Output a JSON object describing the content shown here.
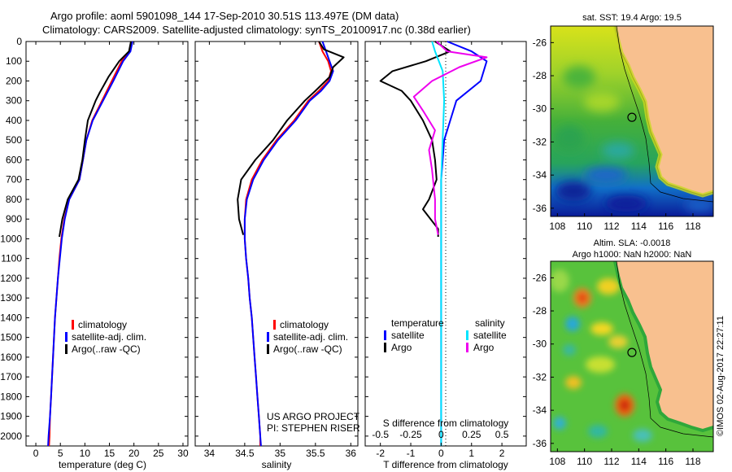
{
  "titles": {
    "line1": "Argo profile: aoml 5901098_144 17-Sep-2010 30.51S 113.497E (DM data)",
    "line2": "Climatology: CARS2009. Satellite-adjusted climatology: synTS_20100917.nc (0.38d earlier)"
  },
  "chart_data": [
    {
      "type": "line",
      "name": "temperature-profile",
      "xlabel": "temperature (deg C)",
      "ylabel": "",
      "xlim": [
        -2,
        31
      ],
      "ylim": [
        2050,
        0
      ],
      "xticks": [
        0,
        5,
        10,
        15,
        20,
        25,
        30
      ],
      "yticks": [
        0,
        100,
        200,
        300,
        400,
        500,
        600,
        700,
        800,
        900,
        1000,
        1100,
        1200,
        1300,
        1400,
        1500,
        1600,
        1700,
        1800,
        1900,
        2000
      ],
      "legend": [
        "climatology",
        "satellite-adj. clim.",
        "Argo(..raw -QC)"
      ],
      "series": [
        {
          "name": "climatology",
          "color": "#ff0000",
          "points": [
            [
              19.5,
              0
            ],
            [
              19.2,
              50
            ],
            [
              17.5,
              100
            ],
            [
              15.5,
              200
            ],
            [
              13.5,
              300
            ],
            [
              11.5,
              400
            ],
            [
              10.3,
              500
            ],
            [
              9.6,
              600
            ],
            [
              8.9,
              700
            ],
            [
              6.8,
              800
            ],
            [
              5.8,
              900
            ],
            [
              5.2,
              1000
            ],
            [
              4.8,
              1100
            ],
            [
              4.5,
              1200
            ],
            [
              4.2,
              1300
            ],
            [
              3.9,
              1400
            ],
            [
              3.7,
              1500
            ],
            [
              3.5,
              1600
            ],
            [
              3.3,
              1700
            ],
            [
              3.1,
              1800
            ],
            [
              2.9,
              1900
            ],
            [
              2.8,
              2000
            ],
            [
              2.7,
              2050
            ]
          ]
        },
        {
          "name": "satellite-adj. clim.",
          "color": "#0000ff",
          "points": [
            [
              19.7,
              0
            ],
            [
              19.3,
              50
            ],
            [
              17.8,
              100
            ],
            [
              15.8,
              200
            ],
            [
              13.7,
              300
            ],
            [
              11.6,
              400
            ],
            [
              10.3,
              500
            ],
            [
              9.6,
              600
            ],
            [
              8.9,
              700
            ],
            [
              6.8,
              800
            ],
            [
              5.9,
              900
            ],
            [
              5.3,
              1000
            ],
            [
              4.9,
              1100
            ],
            [
              4.5,
              1200
            ],
            [
              4.2,
              1300
            ],
            [
              3.9,
              1400
            ],
            [
              3.7,
              1500
            ],
            [
              3.5,
              1600
            ],
            [
              3.3,
              1700
            ],
            [
              3.1,
              1800
            ],
            [
              2.9,
              1900
            ],
            [
              2.6,
              2000
            ],
            [
              2.5,
              2050
            ]
          ]
        },
        {
          "name": "Argo(..raw -QC)",
          "color": "#000000",
          "points": [
            [
              19.4,
              0
            ],
            [
              19.0,
              50
            ],
            [
              17.0,
              100
            ],
            [
              14.8,
              180
            ],
            [
              13.0,
              260
            ],
            [
              12.2,
              300
            ],
            [
              10.6,
              400
            ],
            [
              10.0,
              500
            ],
            [
              9.5,
              600
            ],
            [
              8.7,
              700
            ],
            [
              6.5,
              800
            ],
            [
              5.4,
              900
            ],
            [
              4.8,
              990
            ]
          ]
        }
      ]
    },
    {
      "type": "line",
      "name": "salinity-profile",
      "xlabel": "salinity",
      "ylabel": "",
      "xlim": [
        33.8,
        36.1
      ],
      "ylim": [
        2050,
        0
      ],
      "xticks": [
        34,
        34.5,
        35,
        35.5,
        36
      ],
      "legend": [
        "climatology",
        "satellite-adj. clim.",
        "Argo(..raw -QC)"
      ],
      "annotation": [
        "US ARGO PROJECT",
        "PI: STEPHEN RISER"
      ],
      "series": [
        {
          "name": "climatology",
          "color": "#ff0000",
          "points": [
            [
              35.55,
              0
            ],
            [
              35.6,
              50
            ],
            [
              35.68,
              100
            ],
            [
              35.72,
              150
            ],
            [
              35.68,
              200
            ],
            [
              35.55,
              250
            ],
            [
              35.4,
              300
            ],
            [
              35.2,
              400
            ],
            [
              34.95,
              500
            ],
            [
              34.75,
              600
            ],
            [
              34.6,
              700
            ],
            [
              34.52,
              800
            ],
            [
              34.5,
              900
            ],
            [
              34.5,
              1000
            ],
            [
              34.52,
              1100
            ],
            [
              34.55,
              1200
            ],
            [
              34.57,
              1300
            ],
            [
              34.6,
              1400
            ],
            [
              34.62,
              1500
            ],
            [
              34.64,
              1600
            ],
            [
              34.66,
              1700
            ],
            [
              34.68,
              1800
            ],
            [
              34.7,
              1900
            ],
            [
              34.72,
              2000
            ],
            [
              34.72,
              2050
            ]
          ]
        },
        {
          "name": "satellite-adj. clim.",
          "color": "#0000ff",
          "points": [
            [
              35.6,
              0
            ],
            [
              35.65,
              50
            ],
            [
              35.7,
              100
            ],
            [
              35.75,
              150
            ],
            [
              35.7,
              200
            ],
            [
              35.58,
              250
            ],
            [
              35.42,
              300
            ],
            [
              35.22,
              400
            ],
            [
              34.97,
              500
            ],
            [
              34.77,
              600
            ],
            [
              34.62,
              700
            ],
            [
              34.53,
              800
            ],
            [
              34.5,
              900
            ],
            [
              34.5,
              1000
            ],
            [
              34.52,
              1100
            ],
            [
              34.55,
              1200
            ],
            [
              34.57,
              1300
            ],
            [
              34.6,
              1400
            ],
            [
              34.62,
              1500
            ],
            [
              34.64,
              1600
            ],
            [
              34.66,
              1700
            ],
            [
              34.68,
              1800
            ],
            [
              34.7,
              1900
            ],
            [
              34.72,
              2000
            ],
            [
              34.73,
              2050
            ]
          ]
        },
        {
          "name": "Argo(..raw -QC)",
          "color": "#000000",
          "points": [
            [
              35.55,
              0
            ],
            [
              35.62,
              40
            ],
            [
              35.9,
              80
            ],
            [
              35.75,
              130
            ],
            [
              35.7,
              180
            ],
            [
              35.5,
              250
            ],
            [
              35.35,
              300
            ],
            [
              35.1,
              400
            ],
            [
              34.9,
              500
            ],
            [
              34.65,
              600
            ],
            [
              34.45,
              700
            ],
            [
              34.4,
              800
            ],
            [
              34.42,
              900
            ],
            [
              34.48,
              980
            ]
          ]
        }
      ]
    },
    {
      "type": "line",
      "name": "difference-profile",
      "xlabel": "T difference from climatology",
      "xlabel_top": "S difference from climatology",
      "ylabel": "",
      "xlim": [
        -2.5,
        2.8
      ],
      "ylim": [
        2050,
        0
      ],
      "xticks": [
        -2,
        -1,
        0,
        1,
        2
      ],
      "xticks_s": [
        "-0.5",
        "-0.25",
        "0",
        "0.25",
        "0.5"
      ],
      "legend_headers": [
        "temperature",
        "salinity"
      ],
      "legend": [
        "satellite",
        "Argo",
        "satellite",
        "Argo"
      ],
      "series": [
        {
          "name": "temperature satellite",
          "color": "#0000ff",
          "points": [
            [
              0.2,
              0
            ],
            [
              1.0,
              50
            ],
            [
              1.5,
              100
            ],
            [
              1.3,
              200
            ],
            [
              0.5,
              300
            ],
            [
              0.3,
              400
            ],
            [
              0.1,
              500
            ],
            [
              0.05,
              600
            ],
            [
              0,
              700
            ],
            [
              0,
              800
            ],
            [
              0,
              1000
            ],
            [
              0,
              2050
            ]
          ]
        },
        {
          "name": "temperature Argo",
          "color": "#000000",
          "points": [
            [
              -0.2,
              0
            ],
            [
              0.3,
              50
            ],
            [
              -0.5,
              100
            ],
            [
              -1.6,
              150
            ],
            [
              -2.0,
              200
            ],
            [
              -1.3,
              250
            ],
            [
              -1.0,
              300
            ],
            [
              -0.6,
              400
            ],
            [
              -0.3,
              500
            ],
            [
              -0.2,
              600
            ],
            [
              -0.15,
              700
            ],
            [
              -0.4,
              800
            ],
            [
              -0.6,
              850
            ],
            [
              -0.1,
              950
            ],
            [
              -0.1,
              990
            ]
          ]
        },
        {
          "name": "salinity satellite",
          "color": "#00e5ff",
          "points": [
            [
              -0.3,
              0
            ],
            [
              -0.2,
              50
            ],
            [
              0.05,
              150
            ],
            [
              0.1,
              300
            ],
            [
              0,
              700
            ],
            [
              0,
              2050
            ]
          ]
        },
        {
          "name": "salinity Argo",
          "color": "#ee00ee",
          "points": [
            [
              -0.15,
              0
            ],
            [
              0.2,
              50
            ],
            [
              1.5,
              80
            ],
            [
              0.6,
              130
            ],
            [
              -0.3,
              200
            ],
            [
              -0.9,
              280
            ],
            [
              -0.6,
              350
            ],
            [
              -0.2,
              450
            ],
            [
              -0.4,
              550
            ],
            [
              -0.3,
              650
            ],
            [
              -0.2,
              800
            ],
            [
              -0.2,
              900
            ],
            [
              -0.1,
              980
            ]
          ]
        }
      ]
    },
    {
      "type": "heatmap",
      "name": "sst-map",
      "title": "sat. SST: 19.4 Argo: 19.5",
      "xlim": [
        107.5,
        119.5
      ],
      "ylim": [
        -36.5,
        -25
      ],
      "xticks": [
        108,
        110,
        112,
        114,
        116,
        118
      ],
      "yticks": [
        -26,
        -28,
        -30,
        -32,
        -34,
        -36
      ],
      "argo_position": [
        113.497,
        -30.51
      ]
    },
    {
      "type": "heatmap",
      "name": "sla-map",
      "title": [
        "Altim. SLA: -0.0018",
        "Argo h1000: NaN h2000: NaN"
      ],
      "xlim": [
        107.5,
        119.5
      ],
      "ylim": [
        -36.5,
        -25
      ],
      "xticks": [
        108,
        110,
        112,
        114,
        116,
        118
      ],
      "yticks": [
        -26,
        -28,
        -30,
        -32,
        -34,
        -36
      ],
      "argo_position": [
        113.497,
        -30.51
      ]
    }
  ],
  "credit": "©IMOS 02-Aug-2017 22:27:11",
  "colors": {
    "land": "#f8c08f",
    "coast": "#000000"
  }
}
